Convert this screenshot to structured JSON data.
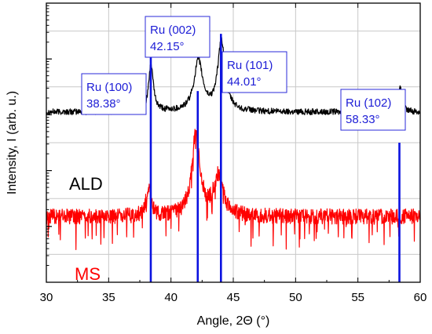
{
  "chart_data": {
    "type": "line",
    "title": "",
    "xlabel": "Angle, 2Θ (°)",
    "ylabel": "Intensity, I (arb. u.)",
    "xlim": [
      30,
      60
    ],
    "ylim": [
      0,
      10
    ],
    "x_ticks": [
      "30",
      "35",
      "40",
      "45",
      "50",
      "55",
      "60"
    ],
    "y_log": true,
    "y_ticks_labeled": false,
    "grid": true,
    "series": [
      {
        "name": "ALD",
        "color": "#000000",
        "baseline": 6.1,
        "peaks": [
          {
            "x": 38.4,
            "height": 1.7,
            "width": 0.22
          },
          {
            "x": 42.2,
            "height": 1.8,
            "width": 0.42
          },
          {
            "x": 44.05,
            "height": 2.5,
            "width": 0.36
          },
          {
            "x": 58.4,
            "height": 0.85,
            "width": 0.18
          }
        ]
      },
      {
        "name": "MS",
        "color": "#ff0000",
        "baseline": 2.35,
        "peaks": [
          {
            "x": 38.2,
            "height": 0.9,
            "width": 0.25
          },
          {
            "x": 42.0,
            "height": 2.9,
            "width": 0.4
          },
          {
            "x": 43.8,
            "height": 1.4,
            "width": 0.45
          }
        ]
      }
    ],
    "reference_lines": [
      {
        "x": 38.38,
        "height": 8.2,
        "label": "Ru (100)",
        "value": "38.38°"
      },
      {
        "x": 42.15,
        "height": 6.85,
        "label": "Ru (002)",
        "value": "42.15°"
      },
      {
        "x": 44.01,
        "height": 8.9,
        "label": "Ru (101)",
        "value": "44.01°"
      },
      {
        "x": 58.33,
        "height": 5.0,
        "label": "Ru (102)",
        "value": "58.33°"
      }
    ],
    "reference_color": "#0b12e0"
  }
}
